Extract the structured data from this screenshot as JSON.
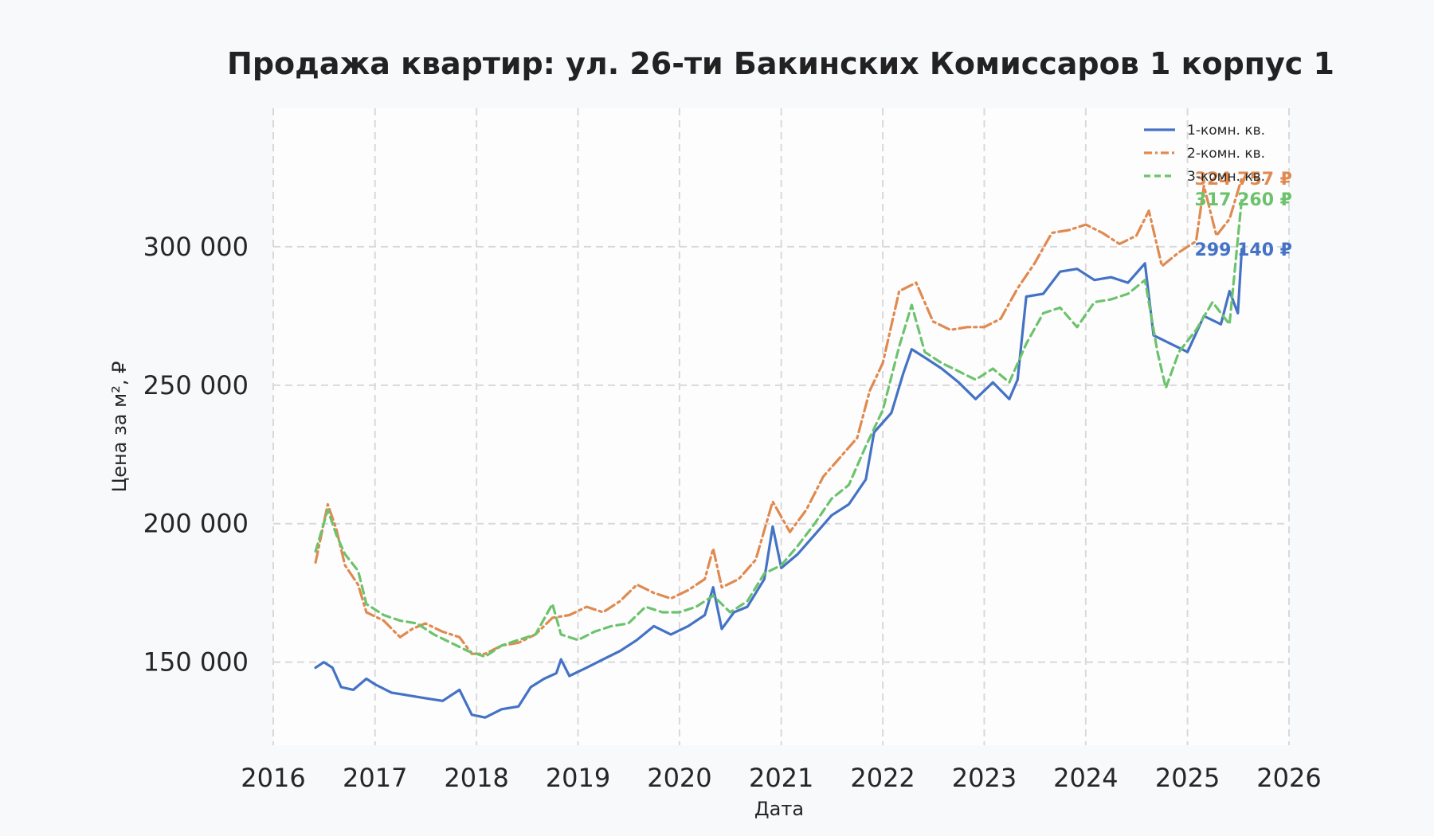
{
  "chart_data": {
    "type": "line",
    "title": "Продажа квартир: ул. 26-ти Бакинских Комиссаров 1 корпус 1",
    "xlabel": "Дата",
    "ylabel": "Цена за м², ₽",
    "xlim": [
      "2016-01-01",
      "2026-01-01"
    ],
    "ylim": [
      120000,
      350000
    ],
    "x_ticks": [
      "2016",
      "2017",
      "2018",
      "2019",
      "2020",
      "2021",
      "2022",
      "2023",
      "2024",
      "2025",
      "2026"
    ],
    "y_ticks": [
      {
        "value": 150000,
        "label": "150 000"
      },
      {
        "value": 200000,
        "label": "200 000"
      },
      {
        "value": 250000,
        "label": "250 000"
      },
      {
        "value": 300000,
        "label": "300 000"
      }
    ],
    "grid": true,
    "legend_position": "top-right",
    "series": [
      {
        "name": "1-комн. кв.",
        "color": "#4472c4",
        "dash": "solid",
        "end_label": "299 140 ₽",
        "points": [
          [
            "2016-06-01",
            148000
          ],
          [
            "2016-07-01",
            150000
          ],
          [
            "2016-08-01",
            148000
          ],
          [
            "2016-09-01",
            141000
          ],
          [
            "2016-10-15",
            140000
          ],
          [
            "2016-12-01",
            144000
          ],
          [
            "2017-01-01",
            142000
          ],
          [
            "2017-03-01",
            139000
          ],
          [
            "2017-05-01",
            138000
          ],
          [
            "2017-07-01",
            137000
          ],
          [
            "2017-09-01",
            136000
          ],
          [
            "2017-11-01",
            140000
          ],
          [
            "2017-12-15",
            131000
          ],
          [
            "2018-02-01",
            130000
          ],
          [
            "2018-04-01",
            133000
          ],
          [
            "2018-06-01",
            134000
          ],
          [
            "2018-07-15",
            141000
          ],
          [
            "2018-09-01",
            144000
          ],
          [
            "2018-10-15",
            146000
          ],
          [
            "2018-11-01",
            151000
          ],
          [
            "2018-12-01",
            145000
          ],
          [
            "2019-02-01",
            148000
          ],
          [
            "2019-04-01",
            151000
          ],
          [
            "2019-06-01",
            154000
          ],
          [
            "2019-08-01",
            158000
          ],
          [
            "2019-10-01",
            163000
          ],
          [
            "2019-12-01",
            160000
          ],
          [
            "2020-02-01",
            163000
          ],
          [
            "2020-04-01",
            167000
          ],
          [
            "2020-05-01",
            177000
          ],
          [
            "2020-06-01",
            162000
          ],
          [
            "2020-07-15",
            168000
          ],
          [
            "2020-09-01",
            170000
          ],
          [
            "2020-11-01",
            180000
          ],
          [
            "2020-12-01",
            199000
          ],
          [
            "2021-01-01",
            184000
          ],
          [
            "2021-03-01",
            189000
          ],
          [
            "2021-05-01",
            196000
          ],
          [
            "2021-07-01",
            203000
          ],
          [
            "2021-09-01",
            207000
          ],
          [
            "2021-11-01",
            216000
          ],
          [
            "2021-12-01",
            233000
          ],
          [
            "2022-02-01",
            240000
          ],
          [
            "2022-03-15",
            254000
          ],
          [
            "2022-04-15",
            263000
          ],
          [
            "2022-06-01",
            260000
          ],
          [
            "2022-08-01",
            256000
          ],
          [
            "2022-10-01",
            251000
          ],
          [
            "2022-12-01",
            245000
          ],
          [
            "2023-02-01",
            251000
          ],
          [
            "2023-04-01",
            245000
          ],
          [
            "2023-05-01",
            252000
          ],
          [
            "2023-06-01",
            282000
          ],
          [
            "2023-08-01",
            283000
          ],
          [
            "2023-10-01",
            291000
          ],
          [
            "2023-12-01",
            292000
          ],
          [
            "2024-02-01",
            288000
          ],
          [
            "2024-04-01",
            289000
          ],
          [
            "2024-06-01",
            287000
          ],
          [
            "2024-08-01",
            294000
          ],
          [
            "2024-09-01",
            268000
          ],
          [
            "2024-11-01",
            265000
          ],
          [
            "2025-01-01",
            262000
          ],
          [
            "2025-03-01",
            275000
          ],
          [
            "2025-05-01",
            272000
          ],
          [
            "2025-06-01",
            284000
          ],
          [
            "2025-07-01",
            276000
          ],
          [
            "2025-07-15",
            299140
          ]
        ]
      },
      {
        "name": "2-комн. кв.",
        "color": "#e08a50",
        "dash": "dashdot",
        "end_label": "324 757 ₽",
        "points": [
          [
            "2016-06-01",
            186000
          ],
          [
            "2016-07-15",
            207000
          ],
          [
            "2016-08-15",
            198000
          ],
          [
            "2016-09-15",
            185000
          ],
          [
            "2016-11-01",
            178000
          ],
          [
            "2016-12-01",
            168000
          ],
          [
            "2017-02-01",
            165000
          ],
          [
            "2017-04-01",
            159000
          ],
          [
            "2017-05-15",
            162000
          ],
          [
            "2017-07-01",
            164000
          ],
          [
            "2017-09-01",
            161000
          ],
          [
            "2017-11-01",
            159000
          ],
          [
            "2017-12-15",
            153000
          ],
          [
            "2018-02-01",
            153000
          ],
          [
            "2018-04-01",
            156000
          ],
          [
            "2018-06-01",
            157000
          ],
          [
            "2018-08-01",
            160000
          ],
          [
            "2018-10-01",
            166000
          ],
          [
            "2018-12-01",
            167000
          ],
          [
            "2019-02-01",
            170000
          ],
          [
            "2019-04-01",
            168000
          ],
          [
            "2019-06-01",
            172000
          ],
          [
            "2019-08-01",
            178000
          ],
          [
            "2019-10-01",
            175000
          ],
          [
            "2019-12-01",
            173000
          ],
          [
            "2020-02-01",
            176000
          ],
          [
            "2020-04-01",
            180000
          ],
          [
            "2020-05-01",
            191000
          ],
          [
            "2020-06-01",
            177000
          ],
          [
            "2020-08-01",
            180000
          ],
          [
            "2020-10-01",
            187000
          ],
          [
            "2020-12-01",
            208000
          ],
          [
            "2021-02-01",
            197000
          ],
          [
            "2021-04-01",
            205000
          ],
          [
            "2021-06-01",
            217000
          ],
          [
            "2021-08-01",
            224000
          ],
          [
            "2021-10-01",
            231000
          ],
          [
            "2021-11-15",
            248000
          ],
          [
            "2022-01-01",
            258000
          ],
          [
            "2022-03-01",
            284000
          ],
          [
            "2022-05-01",
            287000
          ],
          [
            "2022-07-01",
            273000
          ],
          [
            "2022-09-01",
            270000
          ],
          [
            "2022-11-01",
            271000
          ],
          [
            "2023-01-01",
            271000
          ],
          [
            "2023-03-01",
            274000
          ],
          [
            "2023-05-01",
            285000
          ],
          [
            "2023-07-01",
            294000
          ],
          [
            "2023-09-01",
            305000
          ],
          [
            "2023-11-01",
            306000
          ],
          [
            "2024-01-01",
            308000
          ],
          [
            "2024-03-01",
            305000
          ],
          [
            "2024-05-01",
            301000
          ],
          [
            "2024-07-01",
            304000
          ],
          [
            "2024-08-15",
            313000
          ],
          [
            "2024-10-01",
            293000
          ],
          [
            "2024-12-01",
            298000
          ],
          [
            "2025-02-01",
            302000
          ],
          [
            "2025-03-01",
            322000
          ],
          [
            "2025-04-15",
            304000
          ],
          [
            "2025-06-01",
            310000
          ],
          [
            "2025-07-15",
            324757
          ]
        ]
      },
      {
        "name": "3-комн. кв.",
        "color": "#6cc36c",
        "dash": "dashed",
        "end_label": "317 260 ₽",
        "points": [
          [
            "2016-06-01",
            190000
          ],
          [
            "2016-07-15",
            205000
          ],
          [
            "2016-08-15",
            196000
          ],
          [
            "2016-09-15",
            189000
          ],
          [
            "2016-11-01",
            183000
          ],
          [
            "2016-12-01",
            171000
          ],
          [
            "2017-02-01",
            167000
          ],
          [
            "2017-04-01",
            165000
          ],
          [
            "2017-06-01",
            164000
          ],
          [
            "2017-08-01",
            160000
          ],
          [
            "2017-10-01",
            157000
          ],
          [
            "2017-12-01",
            154000
          ],
          [
            "2018-02-01",
            152000
          ],
          [
            "2018-04-01",
            156000
          ],
          [
            "2018-06-01",
            158000
          ],
          [
            "2018-08-01",
            160000
          ],
          [
            "2018-10-01",
            171000
          ],
          [
            "2018-11-01",
            160000
          ],
          [
            "2019-01-01",
            158000
          ],
          [
            "2019-03-01",
            161000
          ],
          [
            "2019-05-01",
            163000
          ],
          [
            "2019-07-01",
            164000
          ],
          [
            "2019-09-01",
            170000
          ],
          [
            "2019-11-01",
            168000
          ],
          [
            "2020-01-01",
            168000
          ],
          [
            "2020-03-01",
            170000
          ],
          [
            "2020-05-01",
            174000
          ],
          [
            "2020-07-01",
            168000
          ],
          [
            "2020-09-01",
            172000
          ],
          [
            "2020-11-01",
            182000
          ],
          [
            "2021-01-01",
            185000
          ],
          [
            "2021-03-01",
            192000
          ],
          [
            "2021-05-01",
            200000
          ],
          [
            "2021-07-01",
            209000
          ],
          [
            "2021-09-01",
            214000
          ],
          [
            "2021-11-01",
            228000
          ],
          [
            "2022-01-01",
            241000
          ],
          [
            "2022-03-01",
            264000
          ],
          [
            "2022-04-15",
            279000
          ],
          [
            "2022-06-01",
            262000
          ],
          [
            "2022-08-01",
            258000
          ],
          [
            "2022-10-01",
            255000
          ],
          [
            "2022-12-01",
            252000
          ],
          [
            "2023-02-01",
            256000
          ],
          [
            "2023-04-01",
            251000
          ],
          [
            "2023-06-01",
            265000
          ],
          [
            "2023-08-01",
            276000
          ],
          [
            "2023-10-01",
            278000
          ],
          [
            "2023-12-01",
            271000
          ],
          [
            "2024-02-01",
            280000
          ],
          [
            "2024-04-01",
            281000
          ],
          [
            "2024-06-01",
            283000
          ],
          [
            "2024-08-01",
            288000
          ],
          [
            "2024-09-15",
            262000
          ],
          [
            "2024-10-15",
            249000
          ],
          [
            "2024-12-01",
            262000
          ],
          [
            "2025-02-01",
            270000
          ],
          [
            "2025-04-01",
            280000
          ],
          [
            "2025-06-01",
            272000
          ],
          [
            "2025-07-15",
            317260
          ]
        ]
      }
    ]
  }
}
